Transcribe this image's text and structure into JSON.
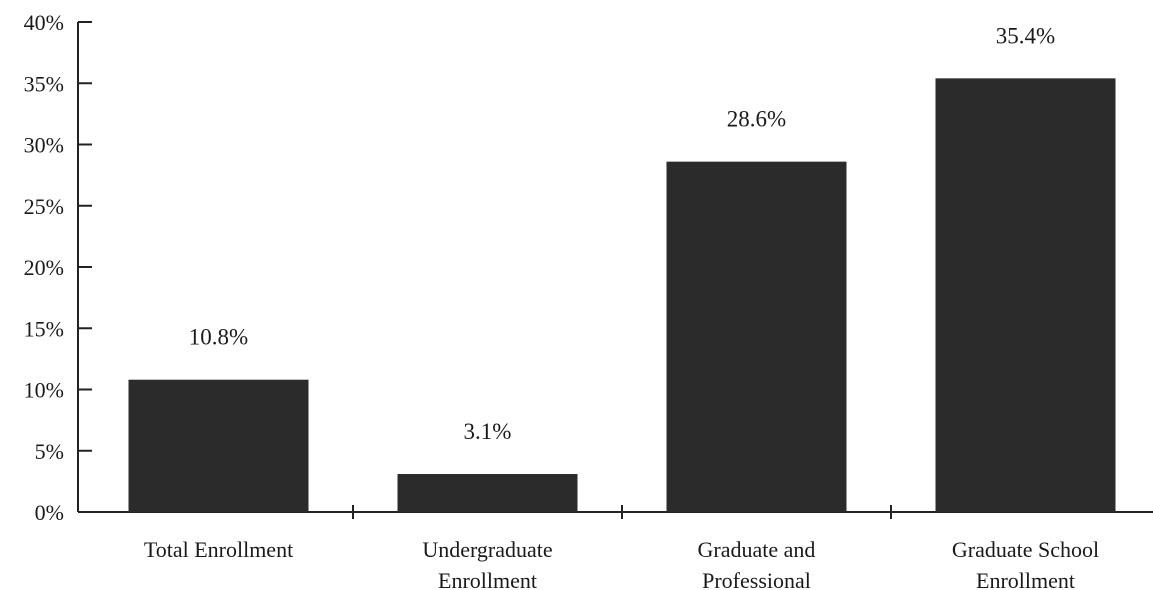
{
  "chart_data": {
    "type": "bar",
    "categories": [
      [
        "Total Enrollment"
      ],
      [
        "Undergraduate",
        "Enrollment"
      ],
      [
        "Graduate and",
        "Professional"
      ],
      [
        "Graduate School",
        "Enrollment"
      ]
    ],
    "values": [
      10.8,
      3.1,
      28.6,
      35.4
    ],
    "data_labels": [
      "10.8%",
      "3.1%",
      "28.6%",
      "35.4%"
    ],
    "y_ticks": [
      {
        "value": 0,
        "label": "0%"
      },
      {
        "value": 5,
        "label": "5%"
      },
      {
        "value": 10,
        "label": "10%"
      },
      {
        "value": 15,
        "label": "15%"
      },
      {
        "value": 20,
        "label": "20%"
      },
      {
        "value": 25,
        "label": "25%"
      },
      {
        "value": 30,
        "label": "30%"
      },
      {
        "value": 35,
        "label": "35%"
      },
      {
        "value": 40,
        "label": "40%"
      }
    ],
    "ylim": [
      0,
      40
    ],
    "title": "",
    "xlabel": "",
    "ylabel": "",
    "grid": false,
    "bar_color": "#2b2b2b"
  }
}
